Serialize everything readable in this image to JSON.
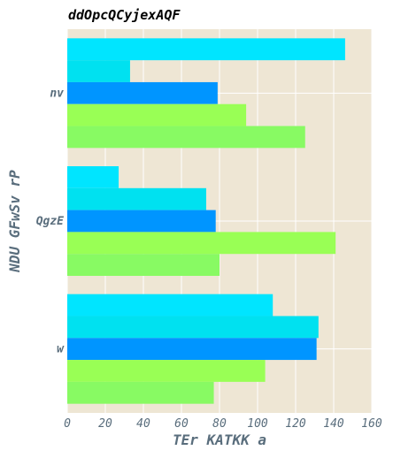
{
  "chart_data": {
    "type": "bar",
    "orientation": "horizontal",
    "title": "ddOpcQCyjexAQF",
    "xlabel": "TEr KATKK a",
    "ylabel": "NDU GFwSv rP",
    "categories": [
      "nv",
      "QgzE",
      "w"
    ],
    "xlim": [
      0,
      160
    ],
    "xticks": [
      0,
      20,
      40,
      60,
      80,
      100,
      120,
      140,
      160
    ],
    "grid": true,
    "legend": "none",
    "series": [
      {
        "color": "#00e5ff",
        "values": [
          146,
          27,
          108
        ]
      },
      {
        "color": "#00e1f0",
        "values": [
          33,
          73,
          132
        ]
      },
      {
        "color": "#0095ff",
        "values": [
          79,
          78,
          131
        ]
      },
      {
        "color": "#99ff55",
        "values": [
          94,
          141,
          104
        ]
      },
      {
        "color": "#88fa63",
        "values": [
          125,
          80,
          77
        ]
      }
    ],
    "background_color": "#eee6d4",
    "grid_color": "#ffffff",
    "axis_text_color": "#5a6e7d"
  }
}
